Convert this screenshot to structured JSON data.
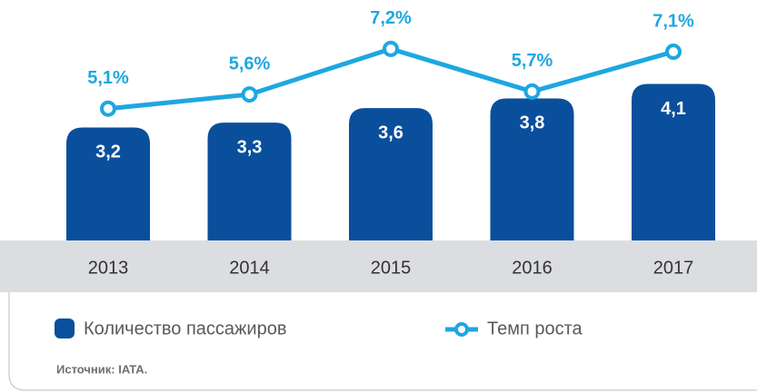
{
  "chart_data": {
    "type": "bar-line",
    "categories": [
      "2013",
      "2014",
      "2015",
      "2016",
      "2017"
    ],
    "series": [
      {
        "name": "Количество пассажиров",
        "type": "bar",
        "color": "#0a4f9c",
        "values": [
          3.2,
          3.3,
          3.6,
          3.8,
          4.1
        ],
        "value_labels": [
          "3,2",
          "3,3",
          "3,6",
          "3,8",
          "4,1"
        ]
      },
      {
        "name": "Темп роста",
        "type": "line",
        "axis": "y2",
        "color": "#1ea7e1",
        "values": [
          5.1,
          5.6,
          7.2,
          5.7,
          7.1
        ],
        "value_labels": [
          "5,1%",
          "5,6%",
          "7,2%",
          "5,7%",
          "7,1%"
        ]
      }
    ],
    "ylim": [
      0,
      5
    ],
    "y2lim": [
      -1,
      7.5
    ],
    "source": "Источник: IATA."
  }
}
